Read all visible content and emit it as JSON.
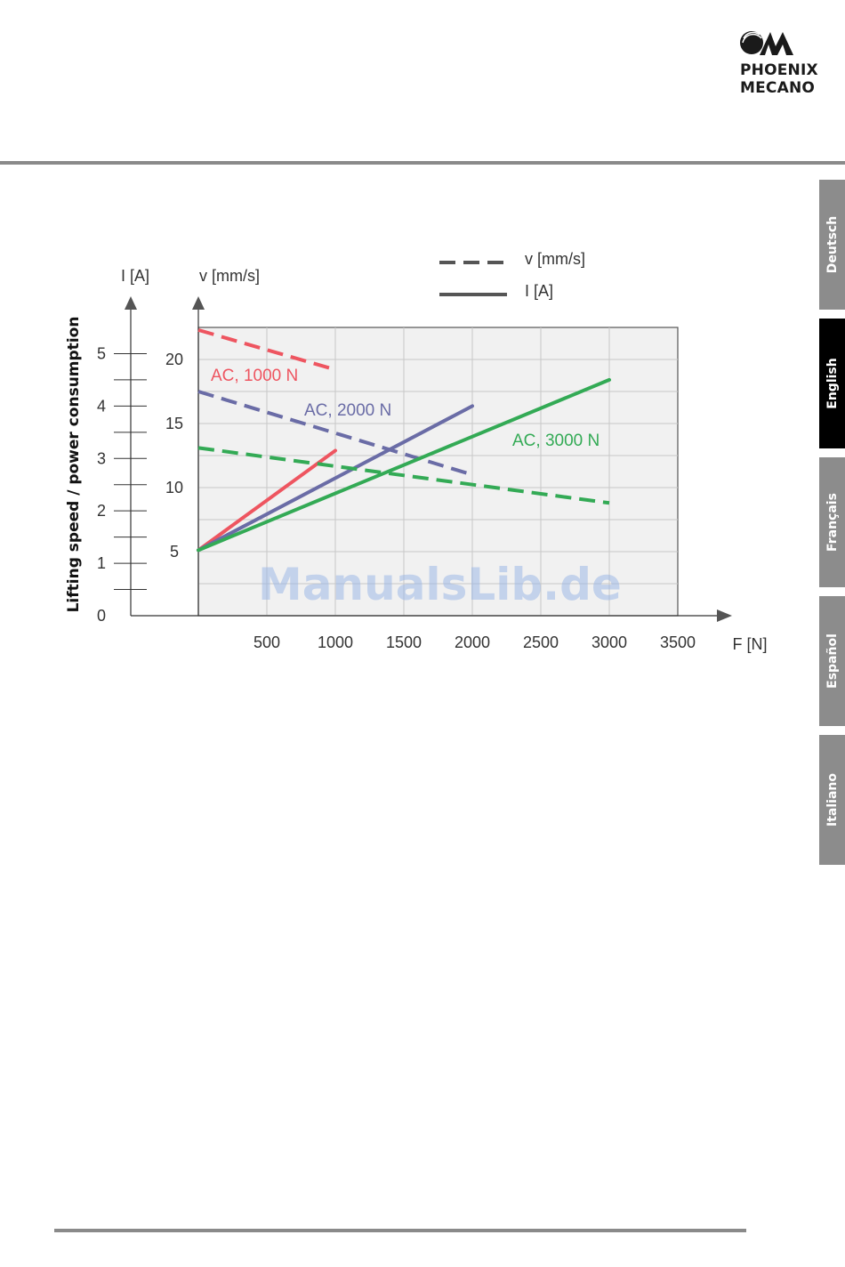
{
  "brand": {
    "line1": "PHOENIX",
    "line2": "MECANO"
  },
  "tabs": [
    {
      "label": "Deutsch",
      "active": false
    },
    {
      "label": "English",
      "active": true
    },
    {
      "label": "Français",
      "active": false
    },
    {
      "label": "Español",
      "active": false
    },
    {
      "label": "Italiano",
      "active": false
    }
  ],
  "watermark": "ManualsLib.de",
  "chart_data": {
    "type": "line",
    "ylabel": "Lifting speed / power consumption",
    "axes": {
      "current": {
        "label": "I [A]",
        "ticks": [
          "0",
          "1",
          "2",
          "3",
          "4",
          "5"
        ],
        "range": [
          0,
          5.5
        ]
      },
      "speed": {
        "label": "v [mm/s]",
        "ticks": [
          "5",
          "10",
          "15",
          "20"
        ],
        "range": [
          0,
          22.5
        ]
      },
      "force": {
        "label": "F [N]",
        "ticks": [
          "500",
          "1000",
          "1500",
          "2000",
          "2500",
          "3000",
          "3500"
        ],
        "range": [
          0,
          3500
        ]
      }
    },
    "legend": [
      {
        "label": "v [mm/s]",
        "style": "dashed"
      },
      {
        "label": "I [A]",
        "style": "solid"
      }
    ],
    "legend_position": "top-right",
    "grid": true,
    "series": [
      {
        "name": "AC, 1000 N",
        "color": "#ee5560",
        "speed": {
          "x": [
            0,
            1000
          ],
          "y": [
            22.3,
            19.2
          ]
        },
        "current": {
          "x": [
            0,
            1000
          ],
          "y": [
            1.25,
            3.15
          ]
        }
      },
      {
        "name": "AC, 2000 N",
        "color": "#6a6ca6",
        "speed": {
          "x": [
            0,
            2000
          ],
          "y": [
            17.5,
            11.0
          ]
        },
        "current": {
          "x": [
            0,
            2000
          ],
          "y": [
            1.25,
            4.0
          ]
        }
      },
      {
        "name": "AC, 3000 N",
        "color": "#33aa55",
        "speed": {
          "x": [
            0,
            3000
          ],
          "y": [
            13.1,
            8.8
          ]
        },
        "current": {
          "x": [
            0,
            3000
          ],
          "y": [
            1.25,
            4.5
          ]
        }
      }
    ]
  }
}
